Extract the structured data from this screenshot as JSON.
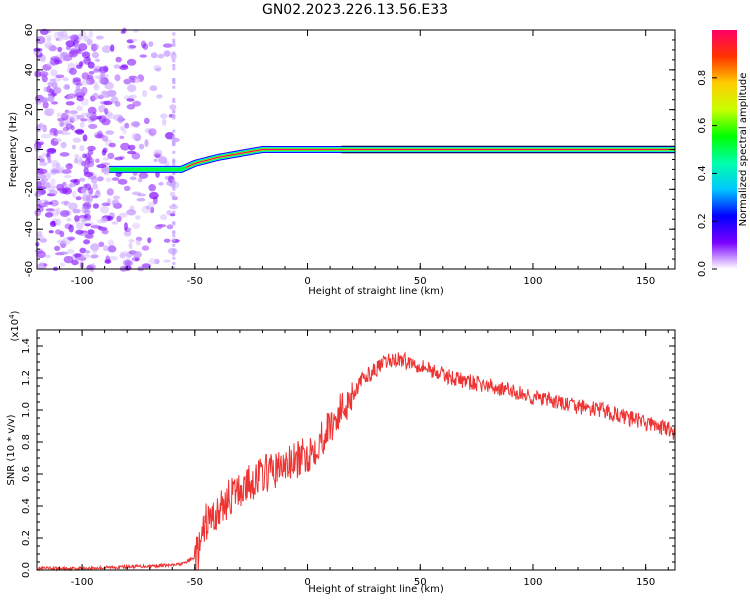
{
  "figure_title": "GN02.2023.226.13.56.E33",
  "chart_data": [
    {
      "type": "heatmap",
      "xlabel": "Height of straight line (km)",
      "ylabel": "Frequency (Hz)",
      "xlim": [
        -120,
        163
      ],
      "ylim": [
        -60,
        60
      ],
      "xticks": [
        "-100",
        "-50",
        "0",
        "50",
        "100",
        "150"
      ],
      "xtick_values": [
        -100,
        -50,
        0,
        50,
        100,
        150
      ],
      "yticks": [
        "-60",
        "-40",
        "-20",
        "0",
        "20",
        "40",
        "60"
      ],
      "ytick_values": [
        -60,
        -40,
        -20,
        0,
        20,
        40,
        60
      ],
      "colorbar": {
        "label": "Normalized spectral amplitude",
        "range": [
          0,
          1
        ],
        "ticks": [
          "0.0",
          "0.2",
          "0.4",
          "0.6",
          "0.8"
        ],
        "tick_values": [
          0,
          0.2,
          0.4,
          0.6,
          0.8
        ]
      },
      "colormap": [
        "#ffffff",
        "#7a00ff",
        "#0000ff",
        "#00e5ff",
        "#00ff3a",
        "#d4ff00",
        "#ffcc00",
        "#ff3300",
        "#ff0066"
      ],
      "ridge": [
        {
          "x": -88,
          "y": -10,
          "amp": 0.45
        },
        {
          "x": -75,
          "y": -10,
          "amp": 0.5
        },
        {
          "x": -62,
          "y": -10,
          "amp": 0.5
        },
        {
          "x": -56,
          "y": -10,
          "amp": 0.55
        },
        {
          "x": -50,
          "y": -7,
          "amp": 0.7
        },
        {
          "x": -40,
          "y": -4,
          "amp": 0.8
        },
        {
          "x": -30,
          "y": -2,
          "amp": 0.85
        },
        {
          "x": -20,
          "y": 0,
          "amp": 0.9
        },
        {
          "x": -10,
          "y": 0,
          "amp": 0.9
        },
        {
          "x": 15,
          "y": 0,
          "amp": 0.95
        },
        {
          "x": 163,
          "y": 0,
          "amp": 1.0
        }
      ],
      "noise_region": [
        -120,
        -58
      ]
    },
    {
      "type": "line",
      "xlabel": "Height of straight line (km)",
      "ylabel": "SNR (10 * v/v)",
      "y_multiplier": "(x10",
      "y_multiplier_exp": "4",
      "y_multiplier_close": ")",
      "xlim": [
        -120,
        163
      ],
      "ylim": [
        0,
        1.5
      ],
      "xticks": [
        "-100",
        "-50",
        "0",
        "50",
        "100",
        "150"
      ],
      "xtick_values": [
        -100,
        -50,
        0,
        50,
        100,
        150
      ],
      "yticks": [
        "0.0",
        "0.2",
        "0.4",
        "0.6",
        "0.8",
        "1.0",
        "1.2",
        "1.4"
      ],
      "ytick_values": [
        0,
        0.2,
        0.4,
        0.6,
        0.8,
        1.0,
        1.2,
        1.4
      ],
      "line_color": "#ee3333",
      "series": [
        {
          "x": [
            -120,
            -100,
            -80,
            -60,
            -55,
            -50,
            -48,
            -45,
            -40,
            -35,
            -30,
            -25,
            -20,
            -15,
            -10,
            -5,
            0,
            5,
            10,
            15,
            20,
            25,
            30,
            35,
            40,
            45,
            50,
            55,
            60,
            70,
            80,
            90,
            100,
            110,
            120,
            130,
            140,
            150,
            160,
            163
          ],
          "y": [
            0.01,
            0.01,
            0.02,
            0.03,
            0.04,
            0.08,
            0.12,
            0.3,
            0.35,
            0.45,
            0.5,
            0.55,
            0.6,
            0.62,
            0.65,
            0.68,
            0.72,
            0.8,
            0.9,
            1.0,
            1.1,
            1.2,
            1.25,
            1.3,
            1.32,
            1.3,
            1.28,
            1.25,
            1.22,
            1.18,
            1.15,
            1.12,
            1.08,
            1.05,
            1.02,
            1.0,
            0.96,
            0.92,
            0.88,
            0.85
          ]
        }
      ]
    }
  ]
}
